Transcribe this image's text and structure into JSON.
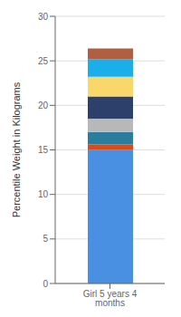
{
  "chart_data": {
    "type": "bar",
    "stacked": true,
    "ylabel": "Percentile Weight in Kilograms",
    "categories": [
      "Girl 5 years 4 months"
    ],
    "series": [
      {
        "color": "#4a90e2",
        "values": [
          15.0
        ]
      },
      {
        "color": "#d94c1a",
        "values": [
          0.6
        ]
      },
      {
        "color": "#2a7d9c",
        "values": [
          1.4
        ]
      },
      {
        "color": "#b8b8b8",
        "values": [
          1.5
        ]
      },
      {
        "color": "#2d3f6b",
        "values": [
          2.5
        ]
      },
      {
        "color": "#f9d76a",
        "values": [
          2.2
        ]
      },
      {
        "color": "#1baee8",
        "values": [
          2.0
        ]
      },
      {
        "color": "#b06040",
        "values": [
          1.2
        ]
      }
    ],
    "ylim": [
      0,
      30
    ],
    "yticks": [
      0,
      5,
      10,
      15,
      20,
      25,
      30
    ],
    "grid": true
  }
}
